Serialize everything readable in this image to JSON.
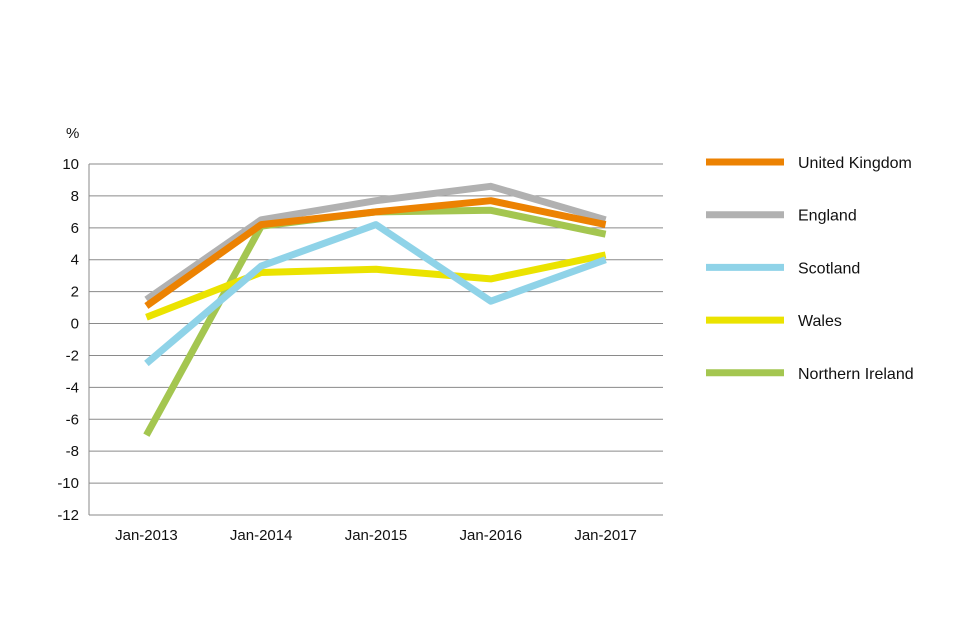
{
  "chart_data": {
    "type": "line",
    "unit_label": "%",
    "x": [
      "Jan-2013",
      "Jan-2014",
      "Jan-2015",
      "Jan-2016",
      "Jan-2017"
    ],
    "ylim": [
      -12,
      10
    ],
    "yticks": [
      10,
      8,
      6,
      4,
      2,
      0,
      -2,
      -4,
      -6,
      -8,
      -10,
      -12
    ],
    "grid": "horizontal",
    "legend_position": "right",
    "series": [
      {
        "name": "United Kingdom",
        "color": "#ec8202",
        "values": [
          1.1,
          6.2,
          7.0,
          7.7,
          6.2
        ]
      },
      {
        "name": "England",
        "color": "#b1b1b1",
        "values": [
          1.5,
          6.5,
          7.7,
          8.6,
          6.5
        ]
      },
      {
        "name": "Scotland",
        "color": "#8fd3e8",
        "values": [
          -2.5,
          3.6,
          6.2,
          1.4,
          4.0
        ]
      },
      {
        "name": "Wales",
        "color": "#ebe300",
        "values": [
          0.4,
          3.2,
          3.4,
          2.8,
          4.3
        ]
      },
      {
        "name": "Northern Ireland",
        "color": "#a4c650",
        "values": [
          -7.0,
          6.1,
          7.0,
          7.1,
          5.6
        ]
      }
    ]
  }
}
